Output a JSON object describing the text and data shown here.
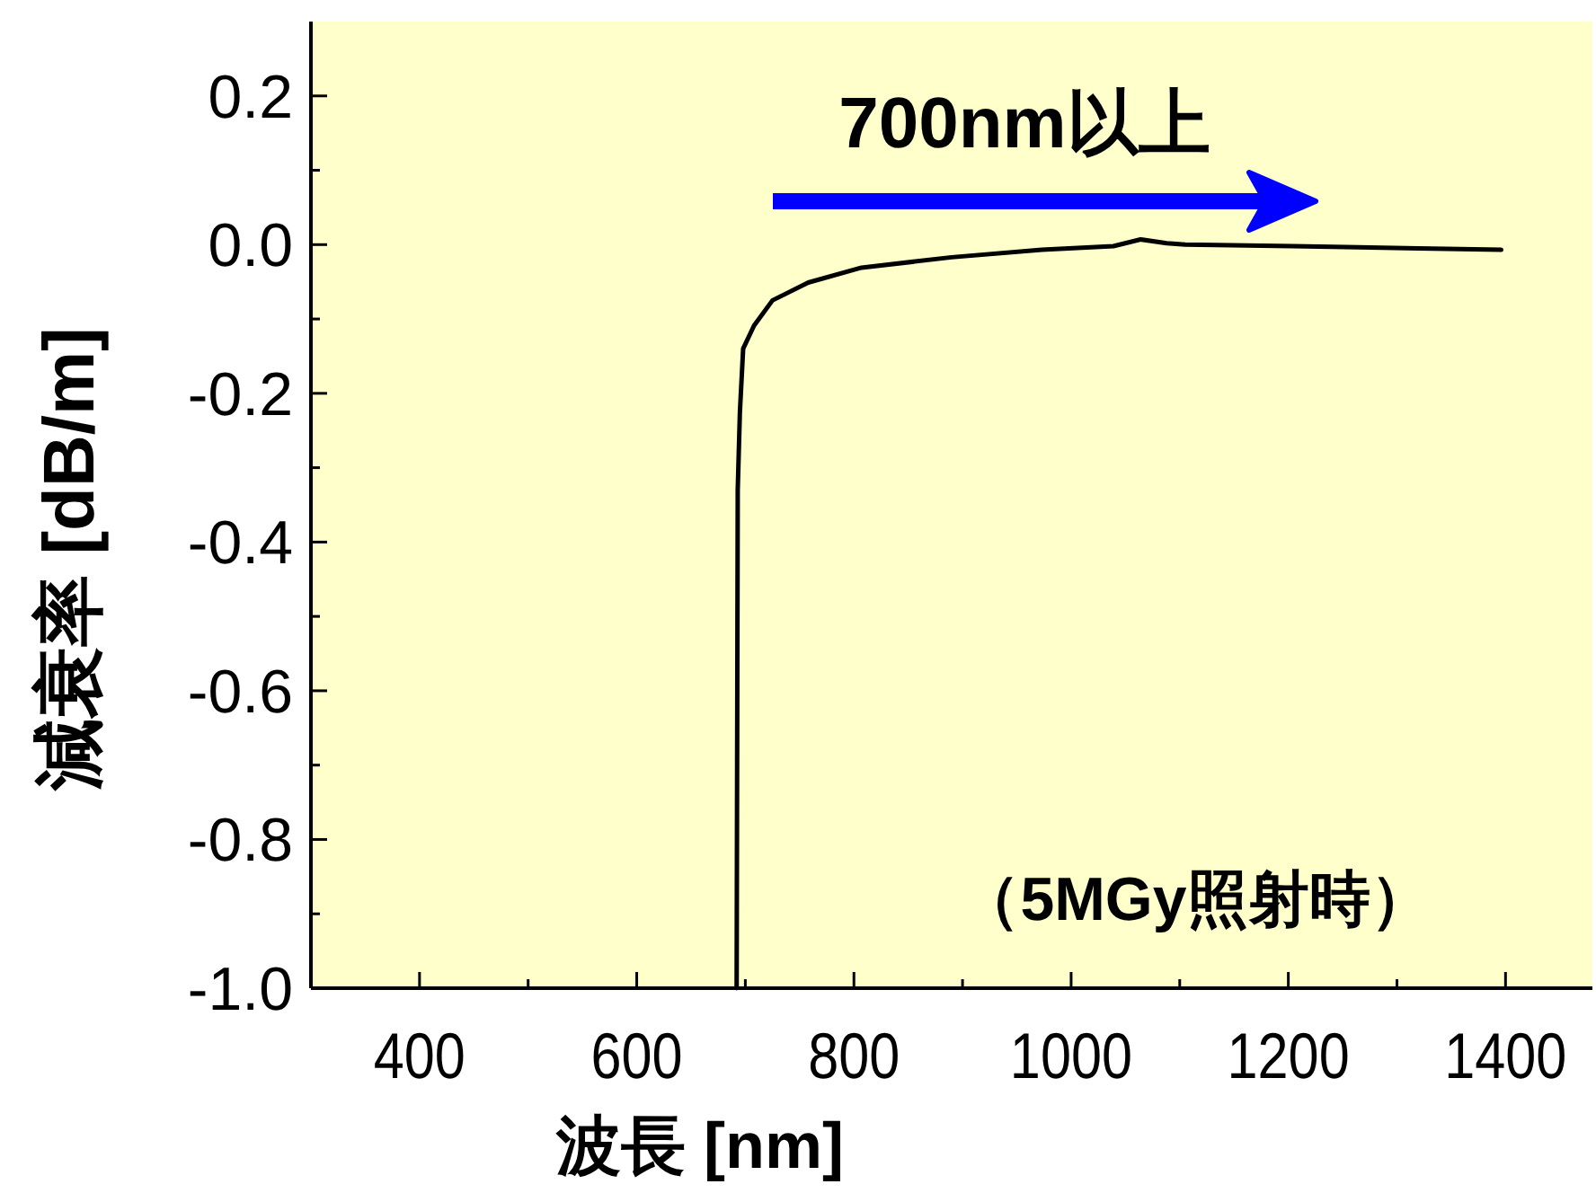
{
  "chart_data": {
    "type": "line",
    "xlabel": "波長 [nm]",
    "ylabel": "減衰率 [dB/m]",
    "annotations": [
      "700nm以上",
      "（5MGy照射時）"
    ],
    "x": [
      692,
      693,
      695,
      698,
      708,
      725,
      758,
      807,
      890,
      973,
      1039,
      1064,
      1088,
      1105,
      1204,
      1320,
      1396
    ],
    "series": [
      {
        "color": "#000000",
        "values": [
          -1.0,
          -0.33,
          -0.225,
          -0.14,
          -0.109,
          -0.075,
          -0.051,
          -0.031,
          -0.017,
          -0.007,
          -0.002,
          0.007,
          0.002,
          0,
          -0.002,
          -0.005,
          -0.007
        ]
      }
    ],
    "xlim": [
      300,
      1480
    ],
    "ylim": [
      -1.0,
      0.3
    ],
    "xticks": [
      400,
      {
        "value": 500,
        "label": null
      },
      600,
      {
        "value": 700,
        "label": null
      },
      800,
      {
        "value": 900,
        "label": null
      },
      1000,
      {
        "value": 1100,
        "label": null
      },
      1200,
      {
        "value": 1300,
        "label": null
      },
      1400
    ],
    "yticks": [
      {
        "value": -1.0,
        "label": "-1.0"
      },
      {
        "value": -0.9,
        "label": null
      },
      {
        "value": -0.8,
        "label": "-0.8"
      },
      {
        "value": -0.7,
        "label": null
      },
      {
        "value": -0.6,
        "label": "-0.6"
      },
      {
        "value": -0.5,
        "label": null
      },
      {
        "value": -0.4,
        "label": "-0.4"
      },
      {
        "value": -0.3,
        "label": null
      },
      {
        "value": -0.2,
        "label": "-0.2"
      },
      {
        "value": -0.1,
        "label": null
      },
      {
        "value": 0,
        "label": "0.0"
      },
      {
        "value": 0.1,
        "label": null
      },
      {
        "value": 0.2,
        "label": "0.2"
      }
    ],
    "line_style": "solid"
  }
}
